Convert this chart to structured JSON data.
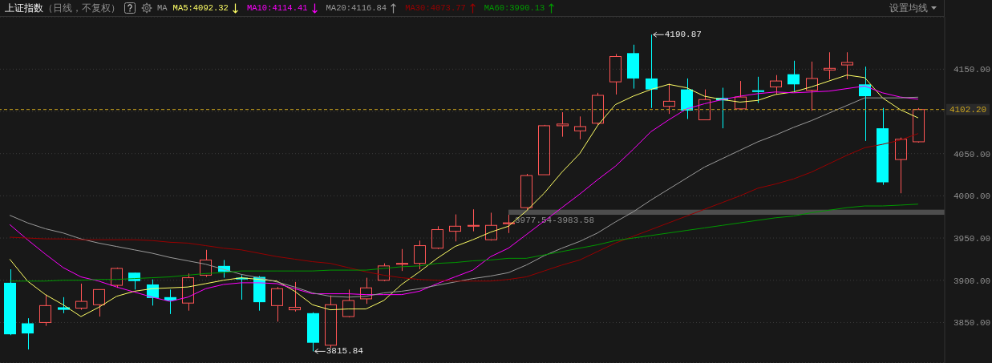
{
  "chart_data": {
    "type": "candlestick",
    "title": "上证指数",
    "subtitle": "（日线，不复权）",
    "legend_title": "MA",
    "categories": [
      null,
      null,
      null,
      null,
      null,
      null,
      null,
      null,
      null,
      null,
      null,
      null,
      null,
      null,
      null,
      null,
      null,
      null,
      null,
      null,
      null,
      null,
      null,
      null,
      null,
      null,
      null,
      null,
      null,
      null,
      null,
      null,
      null,
      null,
      null,
      null,
      null,
      null,
      null,
      null,
      null,
      null,
      null,
      null,
      null,
      null,
      null,
      null,
      null,
      null,
      null,
      null
    ],
    "ohlc": [
      [
        3897,
        3913,
        3835,
        3836
      ],
      [
        3849,
        3855,
        3818,
        3837
      ],
      [
        3850,
        3883,
        3846,
        3870
      ],
      [
        3868,
        3880,
        3861,
        3865
      ],
      [
        3867,
        3896,
        3865,
        3875
      ],
      [
        3871,
        3889,
        3857,
        3889
      ],
      [
        3894,
        3915,
        3891,
        3914
      ],
      [
        3909,
        3909,
        3889,
        3899
      ],
      [
        3895,
        3901,
        3870,
        3879
      ],
      [
        3880,
        3889,
        3860,
        3876
      ],
      [
        3873,
        3908,
        3864,
        3903
      ],
      [
        3906,
        3936,
        3904,
        3924
      ],
      [
        3917,
        3924,
        3903,
        3910
      ],
      [
        3903,
        3906,
        3877,
        3901
      ],
      [
        3904,
        3905,
        3864,
        3874
      ],
      [
        3870,
        3892,
        3851,
        3890
      ],
      [
        3865,
        3898,
        3863,
        3868
      ],
      [
        3861,
        3862,
        3815.84,
        3826
      ],
      [
        3823,
        3882,
        3820,
        3871
      ],
      [
        3857,
        3889,
        3856,
        3876
      ],
      [
        3878,
        3903,
        3872,
        3891
      ],
      [
        3900,
        3920,
        3899,
        3917
      ],
      [
        3919,
        3937,
        3911,
        3920
      ],
      [
        3920,
        3947,
        3913,
        3941
      ],
      [
        3938,
        3964,
        3937,
        3960
      ],
      [
        3958,
        3978,
        3946,
        3964
      ],
      [
        3964,
        3984,
        3958,
        3965
      ],
      [
        3948,
        3980,
        3947,
        3965
      ],
      [
        3967,
        3977.54,
        3956,
        3968
      ],
      [
        3986,
        4026,
        3983.58,
        4024
      ],
      [
        4025,
        4084,
        4025,
        4083
      ],
      [
        4083,
        4099,
        4070,
        4085
      ],
      [
        4077,
        4094,
        4067,
        4082
      ],
      [
        4086,
        4122,
        4084,
        4119
      ],
      [
        4135,
        4168,
        4120,
        4165
      ],
      [
        4169,
        4179,
        4127,
        4139
      ],
      [
        4139,
        4190.87,
        4104,
        4126
      ],
      [
        4106,
        4133,
        4097,
        4112
      ],
      [
        4126,
        4139,
        4091,
        4101
      ],
      [
        4090,
        4126,
        4090,
        4114
      ],
      [
        4116,
        4128,
        4080,
        4113
      ],
      [
        4103,
        4136,
        4103,
        4117
      ],
      [
        4125,
        4141,
        4110,
        4123
      ],
      [
        4129,
        4143,
        4120,
        4136
      ],
      [
        4144,
        4160,
        4124,
        4132
      ],
      [
        4125,
        4159,
        4101,
        4139
      ],
      [
        4149,
        4170,
        4138,
        4151
      ],
      [
        4155,
        4170,
        4138,
        4158
      ],
      [
        4132,
        4153,
        4065,
        4118
      ],
      [
        4080,
        4104,
        4013,
        4016
      ],
      [
        4043,
        4069,
        4003,
        4067
      ],
      [
        4064,
        4104,
        4063,
        4102.2
      ]
    ],
    "colors": [
      "#00ffff",
      "#00ffff",
      "#ff5555",
      "#00ffff",
      "#ff5555",
      "#ff5555",
      "#ff5555",
      "#00ffff",
      "#00ffff",
      "#00ffff",
      "#ff5555",
      "#ff5555",
      "#00ffff",
      "#00ffff",
      "#00ffff",
      "#ff5555",
      "#ff5555",
      "#00ffff",
      "#ff5555",
      "#ff5555",
      "#ff5555",
      "#ff5555",
      "#ff5555",
      "#ff5555",
      "#ff5555",
      "#ff5555",
      "#ff5555",
      "#ff5555",
      "#ff5555",
      "#ff5555",
      "#ff5555",
      "#ff5555",
      "#ff5555",
      "#ff5555",
      "#ff5555",
      "#00ffff",
      "#00ffff",
      "#ff5555",
      "#00ffff",
      "#ff5555",
      "#00ffff",
      "#ff5555",
      "#00ffff",
      "#ff5555",
      "#00ffff",
      "#ff5555",
      "#ff5555",
      "#ff5555",
      "#00ffff",
      "#00ffff",
      "#ff5555",
      "#ff5555"
    ],
    "series": [
      {
        "name": "MA5:4092.32",
        "type": "line",
        "color": "#ffff66",
        "values": [
          3925,
          3899,
          3883,
          3871,
          3857,
          3868,
          3881,
          3887,
          3890,
          3891,
          3892,
          3896,
          3900,
          3903,
          3901,
          3899,
          3887,
          3871,
          3865,
          3866,
          3866,
          3876,
          3895,
          3910,
          3926,
          3940,
          3948,
          3957,
          3964,
          3982,
          4003,
          4028,
          4050,
          4083,
          4108,
          4118,
          4126,
          4132,
          4128,
          4118,
          4114,
          4111,
          4113,
          4120,
          4123,
          4129,
          4136,
          4143,
          4140,
          4116,
          4102,
          4092.32
        ]
      },
      {
        "name": "MA10:4114.41",
        "type": "line",
        "color": "#ff00ff",
        "values": [
          3966,
          3948,
          3931,
          3915,
          3904,
          3899,
          3892,
          3886,
          3880,
          3875,
          3880,
          3890,
          3895,
          3897,
          3897,
          3896,
          3890,
          3884,
          3884,
          3884,
          3883,
          3883,
          3883,
          3887,
          3896,
          3904,
          3912,
          3928,
          3938,
          3954,
          3970,
          3986,
          4002,
          4019,
          4035,
          4055,
          4076,
          4090,
          4103,
          4109,
          4114,
          4118,
          4121,
          4123,
          4122,
          4123,
          4124,
          4127,
          4130,
          4122,
          4117,
          4114.41
        ]
      },
      {
        "name": "MA20:4116.84",
        "type": "line",
        "color": "#9a9a9a",
        "values": [
          3977,
          3968,
          3961,
          3956,
          3949,
          3944,
          3940,
          3936,
          3932,
          3927,
          3923,
          3919,
          3913,
          3907,
          3903,
          3898,
          3892,
          3885,
          3881,
          3880,
          3881,
          3885,
          3887,
          3890,
          3894,
          3898,
          3902,
          3905,
          3909,
          3918,
          3929,
          3938,
          3946,
          3956,
          3969,
          3981,
          3995,
          4008,
          4021,
          4034,
          4044,
          4054,
          4064,
          4072,
          4081,
          4089,
          4098,
          4107,
          4116,
          4116,
          4116,
          4116.84
        ]
      },
      {
        "name": "MA30:4073.77",
        "type": "line",
        "color": "#990000",
        "values": [
          3951,
          3950,
          3949,
          3949,
          3948,
          3948,
          3948,
          3948,
          3947,
          3945,
          3944,
          3941,
          3938,
          3936,
          3932,
          3928,
          3925,
          3922,
          3920,
          3915,
          3910,
          3906,
          3903,
          3901,
          3900,
          3899,
          3899,
          3899,
          3901,
          3904,
          3911,
          3918,
          3924,
          3934,
          3944,
          3952,
          3960,
          3968,
          3976,
          3984,
          3992,
          4000,
          4009,
          4014,
          4020,
          4028,
          4038,
          4048,
          4057,
          4061,
          4066,
          4073.77
        ]
      },
      {
        "name": "MA60:3990.13",
        "type": "line",
        "color": "#009900",
        "values": [
          3899,
          3899,
          3899,
          3900,
          3900,
          3901,
          3901,
          3902,
          3903,
          3904,
          3906,
          3908,
          3909,
          3911,
          3911,
          3911,
          3911,
          3911,
          3912,
          3912,
          3912,
          3914,
          3916,
          3917,
          3920,
          3921,
          3923,
          3924,
          3926,
          3926,
          3930,
          3934,
          3938,
          3942,
          3947,
          3950,
          3953,
          3956,
          3959,
          3962,
          3965,
          3968,
          3971,
          3974,
          3976,
          3980,
          3983,
          3986,
          3988,
          3988,
          3989,
          3990.13
        ]
      }
    ],
    "ylim": [
      3802,
      4212
    ],
    "yticks": [
      {
        "value": 3850,
        "label": "3850.00"
      },
      {
        "value": 3900,
        "label": "3900.00"
      },
      {
        "value": 3950,
        "label": "3950.00"
      },
      {
        "value": 4000,
        "label": "4000.00"
      },
      {
        "value": 4050,
        "label": "4050.00"
      },
      {
        "value": 4100,
        "label": null
      },
      {
        "value": 4150,
        "label": "4150.00"
      }
    ],
    "grid": "y",
    "legend": "top left",
    "ref_lines": [
      {
        "axis": "y",
        "value": 4102.2,
        "label": "4102.20",
        "color": "#c8a21e",
        "line_style": "dashed"
      }
    ],
    "bands": [
      {
        "axis": "y",
        "from": 3977.54,
        "to": 3983.58,
        "label": "3977.54-3983.58",
        "color": "#4d4d4d"
      }
    ],
    "annotations": [
      "设置均线",
      "4190.87",
      "3815.84"
    ]
  }
}
